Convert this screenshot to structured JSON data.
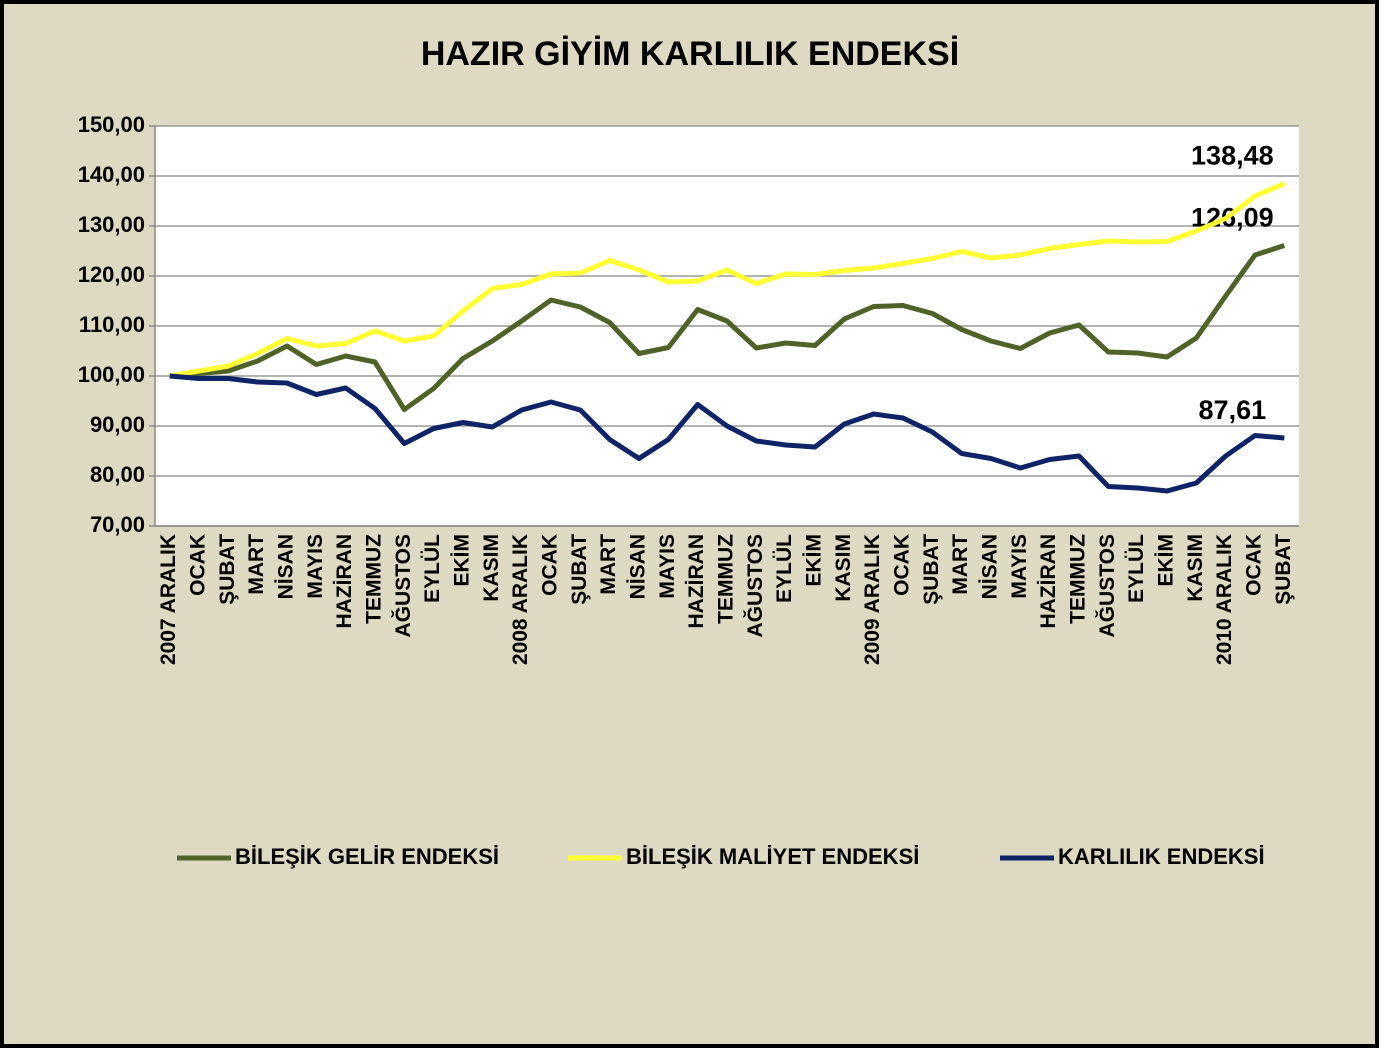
{
  "chart_data": {
    "type": "line",
    "title": "HAZIR GİYİM KARLILIK ENDEKSİ",
    "categories": [
      "2007 ARALIK",
      "OCAK",
      "ŞUBAT",
      "MART",
      "NİSAN",
      "MAYIS",
      "HAZİRAN",
      "TEMMUZ",
      "AĞUSTOS",
      "EYLÜL",
      "EKİM",
      "KASIM",
      "2008 ARALIK",
      "OCAK",
      "ŞUBAT",
      "MART",
      "NİSAN",
      "MAYIS",
      "HAZİRAN",
      "TEMMUZ",
      "AĞUSTOS",
      "EYLÜL",
      "EKİM",
      "KASIM",
      "2009 ARALIK",
      "OCAK",
      "ŞUBAT",
      "MART",
      "NİSAN",
      "MAYIS",
      "HAZİRAN",
      "TEMMUZ",
      "AĞUSTOS",
      "EYLÜL",
      "EKİM",
      "KASIM",
      "2010 ARALIK",
      "OCAK",
      "ŞUBAT"
    ],
    "series": [
      {
        "name": "BİLEŞİK GELİR ENDEKSİ",
        "color": "#4f6228",
        "values": [
          100.0,
          100.5,
          101,
          103,
          106,
          102.3,
          104,
          102.8,
          93.3,
          97.5,
          103.5,
          107,
          111,
          115.2,
          113.8,
          110.7,
          104.5,
          105.7,
          113.3,
          111,
          105.6,
          106.6,
          106.1,
          111.4,
          113.9,
          114.1,
          112.5,
          109.3,
          107,
          105.5,
          108.6,
          110.2,
          104.8,
          104.6,
          103.8,
          107.6,
          116,
          124.2,
          126.09
        ],
        "value_labels": {
          "38": "126,09"
        }
      },
      {
        "name": "BİLEŞİK MALİYET ENDEKSİ",
        "color": "#ffff33",
        "values": [
          100,
          101,
          102,
          104.5,
          107.5,
          106,
          106.5,
          109,
          107,
          108,
          113,
          117.5,
          118.3,
          120.4,
          120.6,
          123.1,
          121.2,
          118.8,
          119,
          121.2,
          118.5,
          120.4,
          120.3,
          121.1,
          121.6,
          122.5,
          123.5,
          124.9,
          123.6,
          124.2,
          125.5,
          126.3,
          127,
          126.8,
          126.9,
          129,
          131.5,
          136,
          138.48
        ],
        "value_labels": {
          "38": "138,48"
        }
      },
      {
        "name": "KARLILIK ENDEKSİ",
        "color": "#0f2467",
        "values": [
          100,
          99.5,
          99.5,
          98.8,
          98.6,
          96.3,
          97.6,
          93.5,
          86.5,
          89.5,
          90.7,
          89.8,
          93.2,
          94.8,
          93.2,
          87.3,
          83.5,
          87.3,
          94.3,
          90,
          87,
          86.2,
          85.8,
          90.4,
          92.4,
          91.6,
          88.8,
          84.5,
          83.5,
          81.6,
          83.3,
          84,
          77.9,
          77.6,
          77,
          78.6,
          84,
          88.1,
          87.61
        ],
        "value_labels": {
          "38": "87,61"
        }
      }
    ],
    "ylim": [
      70,
      150
    ],
    "yticks": [
      {
        "value": 70,
        "label": "70,00"
      },
      {
        "value": 80,
        "label": "80,00"
      },
      {
        "value": 90,
        "label": "90,00"
      },
      {
        "value": 100,
        "label": "100,00"
      },
      {
        "value": 110,
        "label": "110,00"
      },
      {
        "value": 120,
        "label": "120,00"
      },
      {
        "value": 130,
        "label": "130,00"
      },
      {
        "value": 140,
        "label": "140,00"
      },
      {
        "value": 150,
        "label": "150,00"
      }
    ],
    "grid": true,
    "legend": "bottom"
  }
}
